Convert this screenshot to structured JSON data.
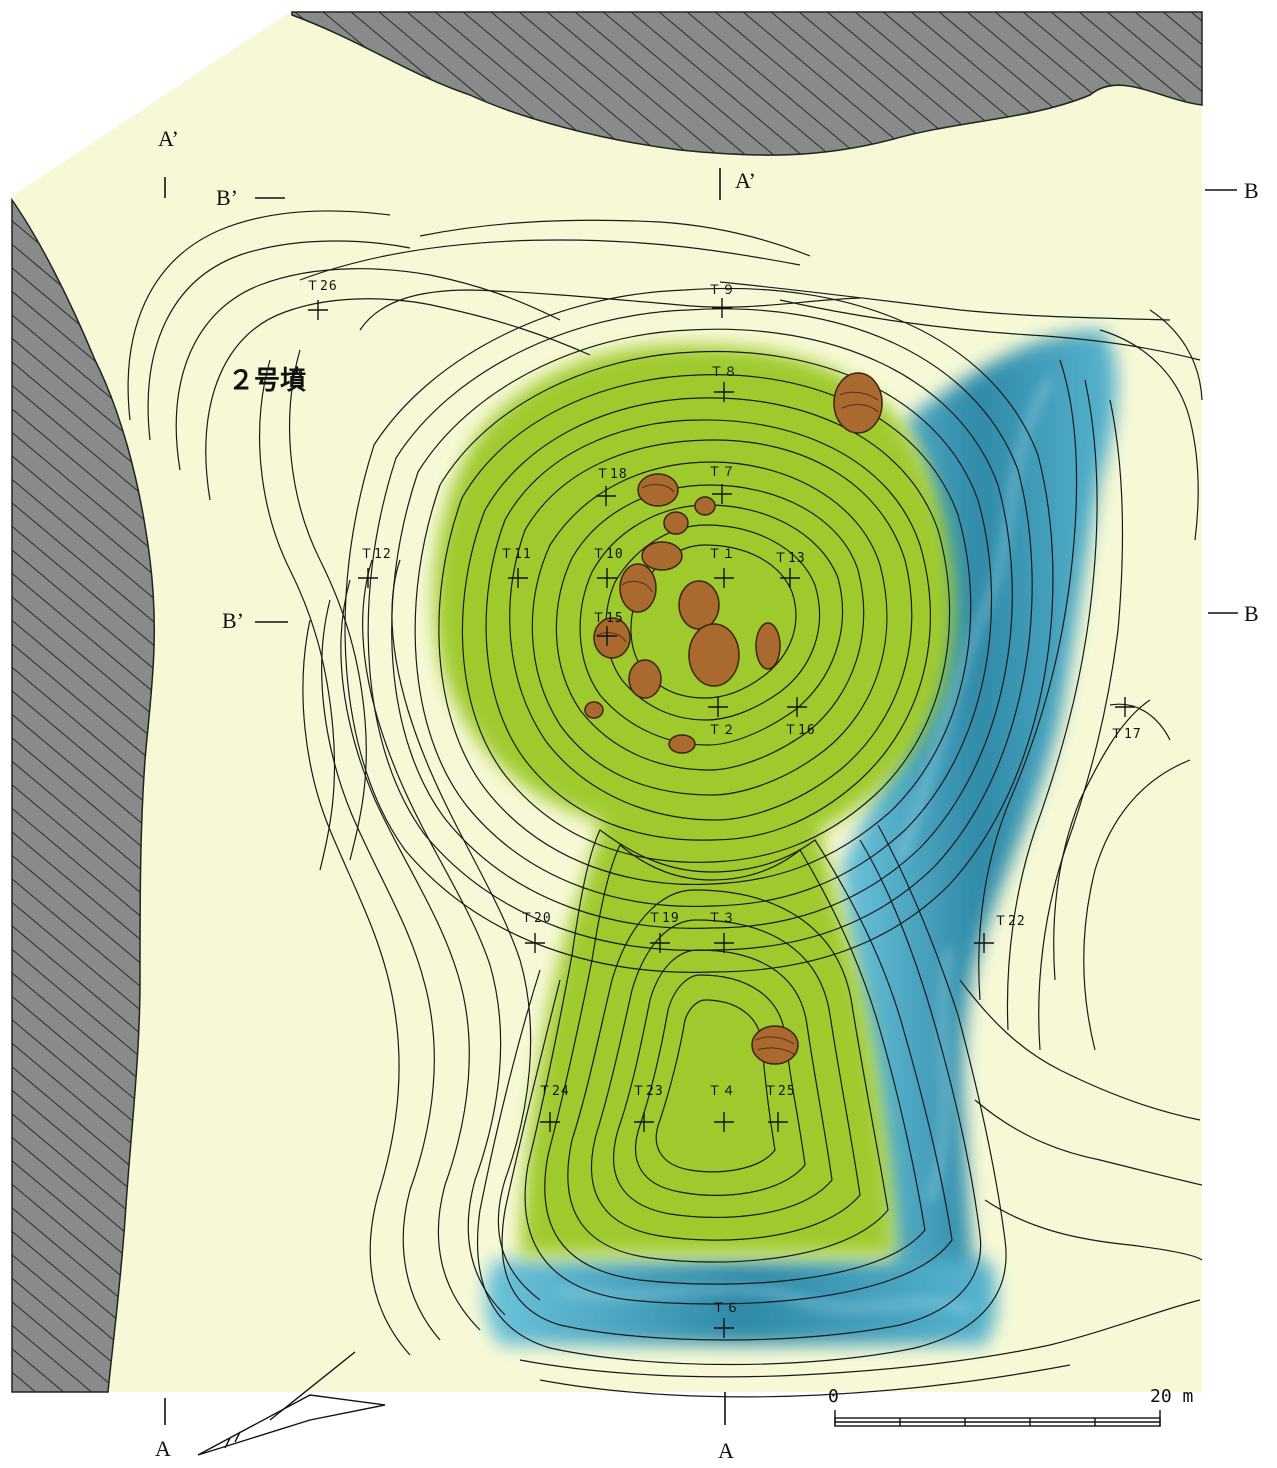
{
  "site_name": "２号墳",
  "section_labels": {
    "a_top_left": "A’",
    "a_top_center": "A’",
    "a_bottom_left": "A",
    "a_bottom_center": "A",
    "b_top_left": "B’",
    "b_mid_left": "B’",
    "b_top_right": "B",
    "b_mid_right": "B"
  },
  "survey_points": [
    {
      "id": "T26",
      "label": "Ｔ26"
    },
    {
      "id": "T9",
      "label": "Ｔ９"
    },
    {
      "id": "T8",
      "label": "Ｔ８"
    },
    {
      "id": "T18",
      "label": "Ｔ18"
    },
    {
      "id": "T7",
      "label": "Ｔ７"
    },
    {
      "id": "T11",
      "label": "Ｔ11"
    },
    {
      "id": "T10",
      "label": "Ｔ10"
    },
    {
      "id": "T1",
      "label": "Ｔ１"
    },
    {
      "id": "T13",
      "label": "Ｔ13"
    },
    {
      "id": "T12",
      "label": "Ｔ12"
    },
    {
      "id": "T15",
      "label": "Ｔ15"
    },
    {
      "id": "T2",
      "label": "Ｔ２"
    },
    {
      "id": "T16",
      "label": "Ｔ16"
    },
    {
      "id": "T17",
      "label": "Ｔ17"
    },
    {
      "id": "T20",
      "label": "Ｔ20"
    },
    {
      "id": "T19",
      "label": "Ｔ19"
    },
    {
      "id": "T3",
      "label": "Ｔ３"
    },
    {
      "id": "T22",
      "label": "Ｔ22"
    },
    {
      "id": "T24",
      "label": "Ｔ24"
    },
    {
      "id": "T23",
      "label": "Ｔ23"
    },
    {
      "id": "T4",
      "label": "Ｔ４"
    },
    {
      "id": "T25",
      "label": "Ｔ25"
    },
    {
      "id": "T6",
      "label": "Ｔ６"
    }
  ],
  "scale_bar": {
    "start_label": "0",
    "end_label": "20 m"
  },
  "colors": {
    "ground": "#f7f9d6",
    "mound": "#9fca2e",
    "moat": "#3fa2be",
    "hatch": "#7c7c7c",
    "stone": "#a9692f",
    "contour": "#1a1a1a"
  }
}
